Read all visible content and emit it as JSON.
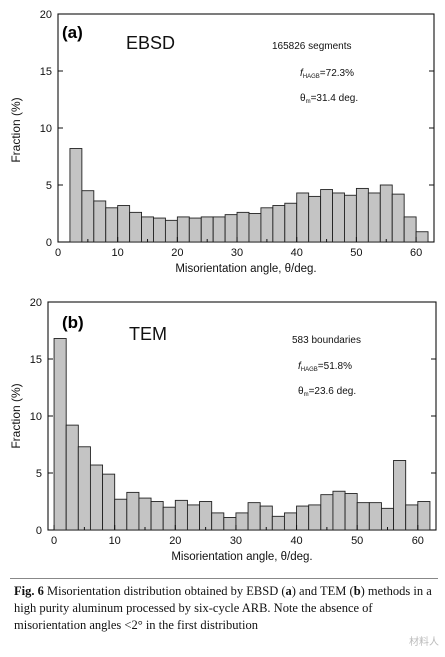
{
  "chart_data": [
    {
      "type": "bar",
      "panel": "(a)",
      "method": "EBSD",
      "annotations": {
        "count": "165826 segments",
        "f_label": "f",
        "f_sub": "HAGB",
        "f_value": "=72.3%",
        "theta_label": "θ",
        "theta_sub": "m",
        "theta_value": "=31.4 deg."
      },
      "xlabel": "Misorientation angle, θ/deg.",
      "ylabel": "Fraction (%)",
      "xlim": [
        0,
        63
      ],
      "ylim": [
        0,
        20
      ],
      "xticks": [
        0,
        10,
        20,
        30,
        40,
        50,
        60
      ],
      "yticks": [
        0,
        5,
        10,
        15,
        20
      ],
      "bin_width": 2,
      "x": [
        2,
        4,
        6,
        8,
        10,
        12,
        14,
        16,
        18,
        20,
        22,
        24,
        26,
        28,
        30,
        32,
        34,
        36,
        38,
        40,
        42,
        44,
        46,
        48,
        50,
        52,
        54,
        56,
        58,
        60
      ],
      "values": [
        8.2,
        4.5,
        3.6,
        3.0,
        3.2,
        2.6,
        2.2,
        2.1,
        1.9,
        2.2,
        2.1,
        2.2,
        2.2,
        2.4,
        2.6,
        2.5,
        3.0,
        3.2,
        3.4,
        4.3,
        4.0,
        4.6,
        4.3,
        4.1,
        4.7,
        4.3,
        5.0,
        4.2,
        2.2,
        0.9
      ]
    },
    {
      "type": "bar",
      "panel": "(b)",
      "method": "TEM",
      "annotations": {
        "count": "583 boundaries",
        "f_label": "f",
        "f_sub": "HAGB",
        "f_value": "=51.8%",
        "theta_label": "θ",
        "theta_sub": "m",
        "theta_value": "=23.6 deg."
      },
      "xlabel": "Misorientation angle, θ/deg.",
      "ylabel": "Fraction (%)",
      "xlim": [
        -1,
        63
      ],
      "ylim": [
        0,
        20
      ],
      "xticks": [
        0,
        10,
        20,
        30,
        40,
        50,
        60
      ],
      "yticks": [
        0,
        5,
        10,
        15,
        20
      ],
      "bin_width": 2,
      "x": [
        0,
        2,
        4,
        6,
        8,
        10,
        12,
        14,
        16,
        18,
        20,
        22,
        24,
        26,
        28,
        30,
        32,
        34,
        36,
        38,
        40,
        42,
        44,
        46,
        48,
        50,
        52,
        54,
        56,
        58,
        60
      ],
      "values": [
        16.8,
        9.2,
        7.3,
        5.7,
        4.9,
        2.7,
        3.3,
        2.8,
        2.5,
        2.0,
        2.6,
        2.2,
        2.5,
        1.5,
        1.1,
        1.5,
        2.4,
        2.1,
        1.2,
        1.5,
        2.1,
        2.2,
        3.1,
        3.4,
        3.2,
        2.4,
        2.4,
        1.9,
        6.1,
        2.2,
        2.5
      ]
    }
  ],
  "caption": {
    "fig_label": "Fig. 6",
    "text": " Misorientation distribution obtained by EBSD (",
    "a_label": "a",
    "text2": ") and TEM (",
    "b_label": "b",
    "text3": ") methods in a high purity aluminum processed by six-cycle ARB. Note the absence of misorientation angles <2° in the first distribution"
  },
  "watermark": "材料人"
}
